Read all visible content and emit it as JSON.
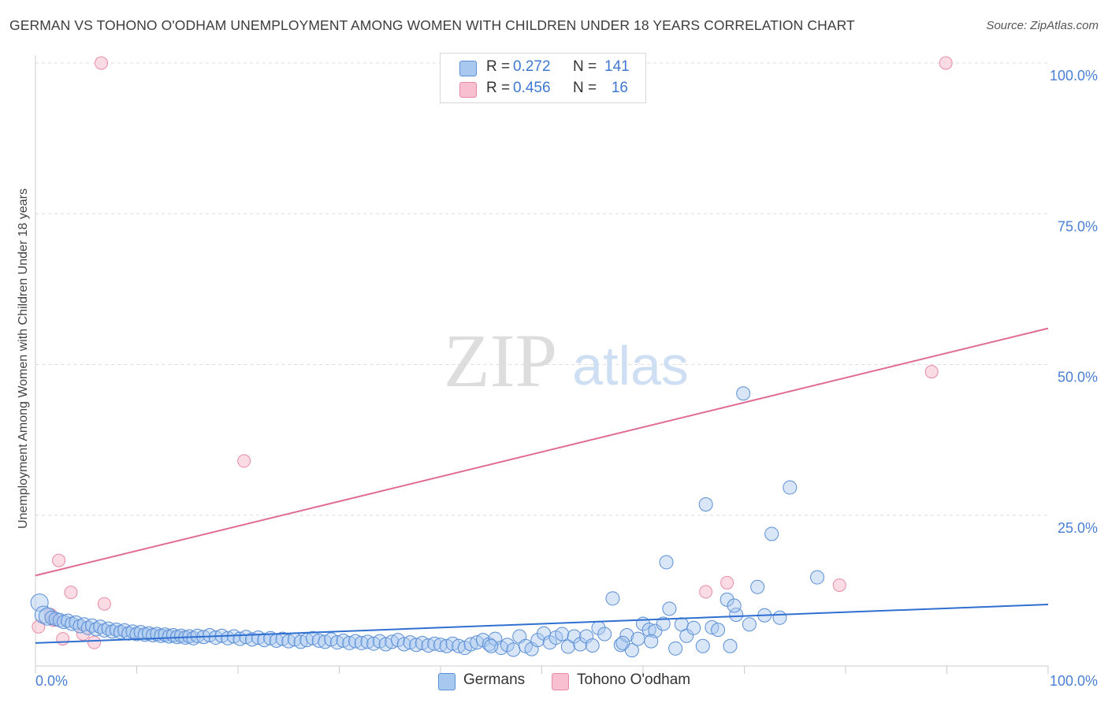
{
  "title": "GERMAN VS TOHONO O'ODHAM UNEMPLOYMENT AMONG WOMEN WITH CHILDREN UNDER 18 YEARS CORRELATION CHART",
  "source": "Source: ZipAtlas.com",
  "colors": {
    "blue_fill": "#a9c8f0",
    "blue_stroke": "#5b8fd6",
    "blue_line": "#2f6fd0",
    "pink_fill": "#f7bfd0",
    "pink_stroke": "#e88aa6",
    "pink_line": "#e06a92",
    "tick_text": "#4a7fd4",
    "grid": "#dddddd"
  },
  "legend": {
    "r_label": "R =",
    "n_label": "N =",
    "rows": [
      {
        "series": "Germans",
        "r": "0.272",
        "n": "141"
      },
      {
        "series": "Tohono O'odham",
        "r": "0.456",
        "n": "16"
      }
    ]
  },
  "watermark": {
    "zip": "ZIP",
    "atlas": "atlas"
  },
  "chart_data": {
    "type": "scatter",
    "title": "GERMAN VS TOHONO O'ODHAM UNEMPLOYMENT AMONG WOMEN WITH CHILDREN UNDER 18 YEARS CORRELATION CHART",
    "xlabel": "",
    "ylabel": "Unemployment Among Women with Children Under 18 years",
    "xlim": [
      0,
      100
    ],
    "ylim": [
      0,
      100
    ],
    "x_tick_labels": [
      "0.0%",
      "100.0%"
    ],
    "y_ticks": [
      25,
      50,
      75,
      100
    ],
    "y_tick_labels": [
      "25.0%",
      "50.0%",
      "75.0%",
      "100.0%"
    ],
    "grid": true,
    "series": [
      {
        "name": "Germans",
        "r": 0.272,
        "n": 141,
        "trend": {
          "x": [
            0,
            100
          ],
          "y": [
            3.8,
            10.2
          ]
        },
        "points": [
          [
            0.4,
            10.5
          ],
          [
            0.8,
            8.5
          ],
          [
            1.2,
            8.2
          ],
          [
            1.6,
            8.0
          ],
          [
            2.0,
            7.8
          ],
          [
            2.4,
            7.6
          ],
          [
            2.8,
            7.3
          ],
          [
            3.2,
            7.5
          ],
          [
            3.6,
            7.0
          ],
          [
            4.0,
            7.2
          ],
          [
            4.4,
            6.6
          ],
          [
            4.8,
            6.9
          ],
          [
            5.2,
            6.3
          ],
          [
            5.6,
            6.7
          ],
          [
            6.0,
            6.1
          ],
          [
            6.4,
            6.5
          ],
          [
            6.8,
            5.9
          ],
          [
            7.2,
            6.2
          ],
          [
            7.6,
            5.7
          ],
          [
            8.0,
            6.0
          ],
          [
            8.4,
            5.6
          ],
          [
            8.8,
            5.9
          ],
          [
            9.2,
            5.4
          ],
          [
            9.6,
            5.7
          ],
          [
            10.0,
            5.3
          ],
          [
            10.4,
            5.6
          ],
          [
            10.8,
            5.2
          ],
          [
            11.2,
            5.4
          ],
          [
            11.6,
            5.1
          ],
          [
            12.0,
            5.3
          ],
          [
            12.4,
            5.0
          ],
          [
            12.8,
            5.2
          ],
          [
            13.2,
            4.9
          ],
          [
            13.6,
            5.1
          ],
          [
            14.0,
            4.8
          ],
          [
            14.4,
            5.0
          ],
          [
            14.8,
            4.7
          ],
          [
            15.2,
            4.9
          ],
          [
            15.6,
            4.6
          ],
          [
            16.0,
            5.0
          ],
          [
            16.6,
            4.8
          ],
          [
            17.2,
            5.1
          ],
          [
            17.8,
            4.7
          ],
          [
            18.4,
            5.0
          ],
          [
            19.0,
            4.6
          ],
          [
            19.6,
            4.9
          ],
          [
            20.2,
            4.5
          ],
          [
            20.8,
            4.8
          ],
          [
            21.4,
            4.4
          ],
          [
            22.0,
            4.7
          ],
          [
            22.6,
            4.3
          ],
          [
            23.2,
            4.6
          ],
          [
            23.8,
            4.2
          ],
          [
            24.4,
            4.5
          ],
          [
            25.0,
            4.1
          ],
          [
            25.6,
            4.4
          ],
          [
            26.2,
            4.0
          ],
          [
            26.8,
            4.3
          ],
          [
            27.4,
            4.6
          ],
          [
            28.0,
            4.2
          ],
          [
            28.6,
            4.0
          ],
          [
            29.2,
            4.4
          ],
          [
            29.8,
            3.9
          ],
          [
            30.4,
            4.2
          ],
          [
            31.0,
            3.8
          ],
          [
            31.6,
            4.1
          ],
          [
            32.2,
            3.8
          ],
          [
            32.8,
            4.0
          ],
          [
            33.4,
            3.7
          ],
          [
            34.0,
            4.1
          ],
          [
            34.6,
            3.6
          ],
          [
            35.2,
            4.0
          ],
          [
            35.8,
            4.3
          ],
          [
            36.4,
            3.6
          ],
          [
            37.0,
            3.9
          ],
          [
            37.6,
            3.5
          ],
          [
            38.2,
            3.8
          ],
          [
            38.8,
            3.4
          ],
          [
            39.4,
            3.7
          ],
          [
            40.0,
            3.5
          ],
          [
            40.6,
            3.3
          ],
          [
            41.2,
            3.7
          ],
          [
            41.8,
            3.3
          ],
          [
            42.4,
            3.0
          ],
          [
            43.0,
            3.6
          ],
          [
            43.6,
            3.9
          ],
          [
            44.2,
            4.3
          ],
          [
            44.8,
            3.6
          ],
          [
            45.4,
            4.5
          ],
          [
            46.0,
            3.0
          ],
          [
            46.6,
            3.5
          ],
          [
            47.2,
            2.7
          ],
          [
            47.8,
            4.9
          ],
          [
            48.4,
            3.3
          ],
          [
            49.0,
            2.8
          ],
          [
            49.6,
            4.3
          ],
          [
            50.2,
            5.4
          ],
          [
            50.8,
            3.9
          ],
          [
            51.4,
            4.7
          ],
          [
            52.0,
            5.3
          ],
          [
            52.6,
            3.2
          ],
          [
            53.2,
            4.9
          ],
          [
            53.8,
            3.6
          ],
          [
            54.4,
            4.9
          ],
          [
            55.0,
            3.4
          ],
          [
            55.6,
            6.3
          ],
          [
            56.2,
            5.3
          ],
          [
            57.0,
            11.2
          ],
          [
            57.8,
            3.5
          ],
          [
            58.4,
            5.1
          ],
          [
            58.9,
            2.6
          ],
          [
            59.5,
            4.5
          ],
          [
            60.0,
            7.0
          ],
          [
            60.6,
            6.0
          ],
          [
            61.2,
            5.8
          ],
          [
            62.0,
            7.0
          ],
          [
            62.6,
            9.5
          ],
          [
            63.2,
            2.9
          ],
          [
            63.8,
            6.9
          ],
          [
            64.3,
            5.0
          ],
          [
            65.0,
            6.3
          ],
          [
            65.9,
            3.3
          ],
          [
            66.2,
            26.8
          ],
          [
            66.8,
            6.4
          ],
          [
            67.4,
            6.0
          ],
          [
            68.3,
            11.0
          ],
          [
            68.6,
            3.3
          ],
          [
            69.2,
            8.5
          ],
          [
            69.9,
            45.2
          ],
          [
            71.3,
            13.1
          ],
          [
            72.0,
            8.4
          ],
          [
            72.7,
            21.9
          ],
          [
            74.5,
            29.6
          ],
          [
            77.2,
            14.7
          ],
          [
            62.3,
            17.2
          ],
          [
            69.0,
            10.0
          ],
          [
            70.5,
            6.9
          ],
          [
            73.5,
            8.0
          ],
          [
            60.8,
            4.1
          ],
          [
            58.0,
            3.8
          ],
          [
            45.0,
            3.3
          ]
        ]
      },
      {
        "name": "Tohono O'odham",
        "r": 0.456,
        "n": 16,
        "trend": {
          "x": [
            0,
            100
          ],
          "y": [
            15.0,
            56.0
          ]
        },
        "points": [
          [
            0.3,
            6.5
          ],
          [
            1.5,
            8.5
          ],
          [
            1.8,
            7.6
          ],
          [
            2.3,
            17.5
          ],
          [
            2.7,
            4.5
          ],
          [
            3.5,
            12.2
          ],
          [
            4.7,
            5.3
          ],
          [
            5.8,
            3.9
          ],
          [
            6.5,
            100.0
          ],
          [
            6.8,
            10.3
          ],
          [
            20.6,
            34.0
          ],
          [
            66.2,
            12.3
          ],
          [
            68.3,
            13.8
          ],
          [
            79.4,
            13.4
          ],
          [
            88.5,
            48.8
          ],
          [
            89.9,
            100.0
          ]
        ]
      }
    ]
  }
}
